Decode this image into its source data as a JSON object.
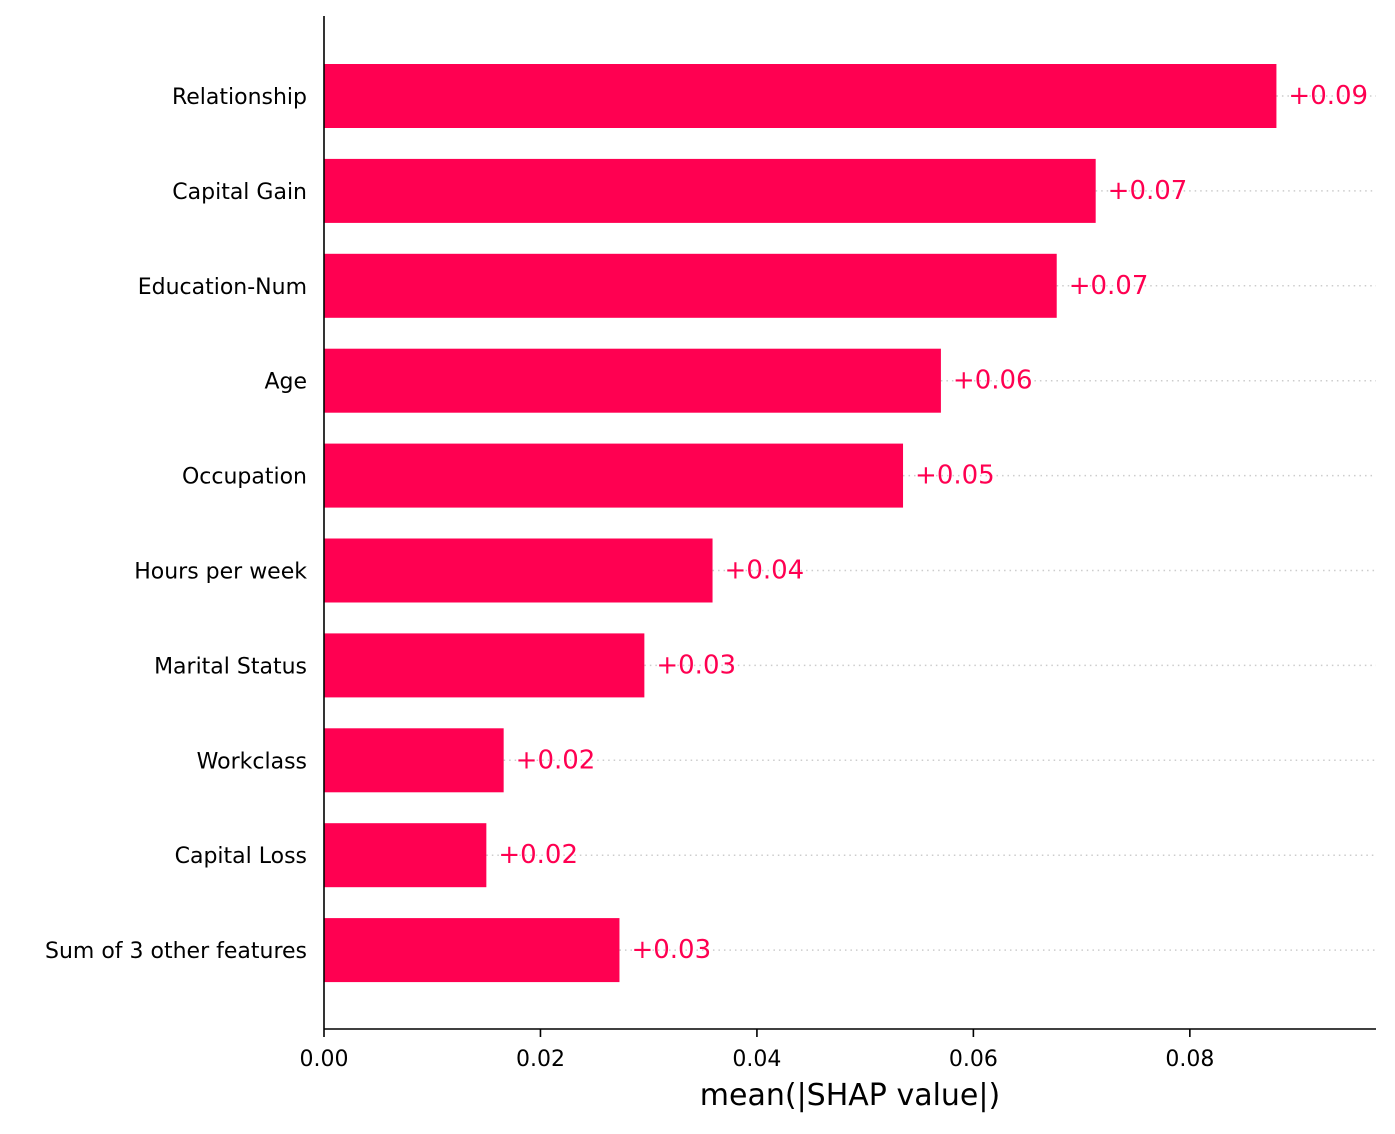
{
  "chart_data": {
    "type": "bar",
    "orientation": "horizontal",
    "title": "",
    "xlabel": "mean(|SHAP value|)",
    "ylabel": "",
    "xlim": [
      0,
      0.0972
    ],
    "grid": false,
    "bar_color": "#ff0051",
    "label_color": "#ff0051",
    "axis_color": "#000000",
    "guide_line_color": "#cccccc",
    "x_ticks": [
      {
        "value": 0.0,
        "label": "0.00"
      },
      {
        "value": 0.02,
        "label": "0.02"
      },
      {
        "value": 0.04,
        "label": "0.04"
      },
      {
        "value": 0.06,
        "label": "0.06"
      },
      {
        "value": 0.08,
        "label": "0.08"
      }
    ],
    "categories": [
      "Relationship",
      "Capital Gain",
      "Education-Num",
      "Age",
      "Occupation",
      "Hours per week",
      "Marital Status",
      "Workclass",
      "Capital Loss",
      "Sum of 3 other features"
    ],
    "values": [
      0.088,
      0.0713,
      0.0677,
      0.057,
      0.0535,
      0.0359,
      0.0296,
      0.0166,
      0.015,
      0.0273
    ],
    "data_labels": [
      "+0.09",
      "+0.07",
      "+0.07",
      "+0.06",
      "+0.05",
      "+0.04",
      "+0.03",
      "+0.02",
      "+0.02",
      "+0.03"
    ]
  }
}
